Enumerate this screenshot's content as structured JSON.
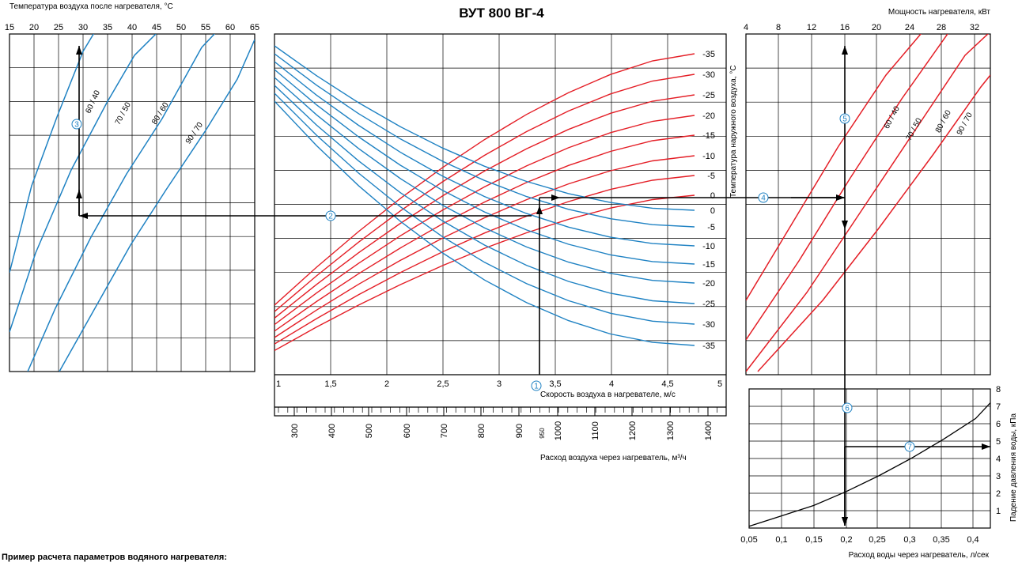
{
  "title": "ВУТ 800 ВГ-4",
  "footnote": "Пример расчета параметров водяного нагревателя:",
  "colors": {
    "blue": "#1f82c3",
    "red": "#e41e26",
    "black": "#000000"
  },
  "chart_data": [
    {
      "id": "heating-temperature",
      "type": "line",
      "xlabel": "Температура воздуха после нагревателя, °C",
      "x_ticks": [
        15,
        20,
        25,
        30,
        35,
        40,
        45,
        50,
        55,
        60,
        65
      ],
      "xlim": [
        15,
        65
      ],
      "series": [
        {
          "name": "60 / 40",
          "points": [
            [
              15,
              -11.7
            ],
            [
              21,
              -41
            ],
            [
              26,
              -62
            ],
            [
              30,
              -78
            ]
          ]
        },
        {
          "name": "70 / 50",
          "points": [
            [
              16,
              -38
            ],
            [
              25,
              -3
            ],
            [
              32,
              22
            ],
            [
              40,
              45
            ],
            [
              44,
              57
            ]
          ]
        },
        {
          "name": "80 / 60",
          "points": [
            [
              20,
              -47
            ],
            [
              30,
              -13
            ],
            [
              40,
              12
            ],
            [
              50,
              40
            ],
            [
              55,
              55
            ]
          ]
        },
        {
          "name": "90 / 70",
          "points": [
            [
              24,
              -60
            ],
            [
              35,
              -27
            ],
            [
              45,
              0
            ],
            [
              55,
              22
            ],
            [
              65,
              47
            ]
          ]
        }
      ],
      "example_value": 29.5
    },
    {
      "id": "air-velocity",
      "type": "line",
      "xlabel": "Скорость воздуха в нагревателе, м/с",
      "x2label": "Расход воздуха через нагреватель, м³/ч",
      "ylabel": "Температура наружного воздуха, °C",
      "x_ticks": [
        "1",
        "1,5",
        "2",
        "2,5",
        "3",
        "3,5",
        "4",
        "4,5",
        "5"
      ],
      "xlim": [
        1,
        5
      ],
      "flow_ticks": [
        "300",
        "400",
        "500",
        "600",
        "700",
        "800",
        "900",
        "1000",
        "1100",
        "1200",
        "1300",
        "1400"
      ],
      "flow_example": "950",
      "red_labels": [
        "-35",
        "-30",
        "-25",
        "-20",
        "-15",
        "-10",
        "-5",
        "0"
      ],
      "blue_labels": [
        "0",
        "-5",
        "-10",
        "-15",
        "-20",
        "-25",
        "-30",
        "-35"
      ],
      "red_series": [
        {
          "t": -35,
          "points": [
            [
              1,
              -35.5
            ],
            [
              1.5,
              -42
            ],
            [
              2,
              -46.5
            ],
            [
              3,
              -54
            ],
            [
              4,
              -59
            ],
            [
              5,
              -63
            ]
          ]
        },
        {
          "t": -30,
          "points": [
            [
              1,
              -40
            ],
            [
              1.5,
              -46
            ],
            [
              2,
              -51
            ],
            [
              3,
              -58
            ],
            [
              4,
              -63
            ],
            [
              5,
              -67
            ]
          ]
        },
        {
          "t": -25,
          "points": [
            [
              1,
              -44
            ],
            [
              1.5,
              -50
            ],
            [
              2,
              -55
            ],
            [
              3,
              -62
            ],
            [
              4,
              -67
            ],
            [
              5,
              -71
            ]
          ]
        },
        {
          "t": -20,
          "points": [
            [
              1,
              -48
            ],
            [
              1.5,
              -54
            ],
            [
              2,
              -59
            ],
            [
              3,
              -66
            ],
            [
              4,
              -71
            ],
            [
              5,
              -75
            ]
          ]
        },
        {
          "t": -15,
          "points": [
            [
              1,
              -52
            ],
            [
              1.5,
              -58
            ],
            [
              2,
              -63
            ],
            [
              3,
              -70
            ],
            [
              4,
              -75
            ],
            [
              5,
              -79
            ]
          ]
        },
        {
          "t": -10,
          "points": [
            [
              1,
              -56
            ],
            [
              1.5,
              -62
            ],
            [
              2,
              -67
            ],
            [
              3,
              -74
            ],
            [
              4,
              -79
            ],
            [
              5,
              -83
            ]
          ]
        },
        {
          "t": -5,
          "points": [
            [
              1,
              -60
            ],
            [
              1.5,
              -66
            ],
            [
              2,
              -71
            ],
            [
              3,
              -78
            ],
            [
              4,
              -83
            ],
            [
              5,
              -87
            ]
          ]
        },
        {
          "t": 0,
          "points": [
            [
              1,
              -64
            ],
            [
              1.5,
              -70
            ],
            [
              2,
              -75
            ],
            [
              3,
              -82
            ],
            [
              4,
              -87
            ],
            [
              5,
              -91
            ]
          ]
        }
      ],
      "blue_series": [
        {
          "t": 0,
          "points": [
            [
              1,
              50
            ],
            [
              1.5,
              37
            ],
            [
              2,
              27
            ],
            [
              3,
              14
            ],
            [
              4,
              6
            ],
            [
              5,
              1
            ]
          ]
        },
        {
          "t": -5,
          "points": [
            [
              1,
              46
            ],
            [
              1.5,
              33
            ],
            [
              2,
              23
            ],
            [
              3,
              10
            ],
            [
              4,
              2
            ],
            [
              5,
              -3
            ]
          ]
        },
        {
          "t": -10,
          "points": [
            [
              1,
              42
            ],
            [
              1.5,
              29
            ],
            [
              2,
              19
            ],
            [
              3,
              6
            ],
            [
              4,
              -2
            ],
            [
              5,
              -7
            ]
          ]
        },
        {
          "t": -15,
          "points": [
            [
              1,
              38
            ],
            [
              1.5,
              25
            ],
            [
              2,
              15
            ],
            [
              3,
              2
            ],
            [
              4,
              -6
            ],
            [
              5,
              -11
            ]
          ]
        },
        {
          "t": -20,
          "points": [
            [
              1,
              34
            ],
            [
              1.5,
              21
            ],
            [
              2,
              11
            ],
            [
              3,
              -2
            ],
            [
              4,
              -10
            ],
            [
              5,
              -15
            ]
          ]
        },
        {
          "t": -25,
          "points": [
            [
              1,
              30
            ],
            [
              1.5,
              17
            ],
            [
              2,
              7
            ],
            [
              3,
              -6
            ],
            [
              4,
              -14
            ],
            [
              5,
              -19
            ]
          ]
        },
        {
          "t": -30,
          "points": [
            [
              1,
              26
            ],
            [
              1.5,
              13
            ],
            [
              2,
              3
            ],
            [
              3,
              -10
            ],
            [
              4,
              -18
            ],
            [
              5,
              -23
            ]
          ]
        },
        {
          "t": -35,
          "points": [
            [
              1,
              22
            ],
            [
              1.5,
              9
            ],
            [
              2,
              -1
            ],
            [
              3,
              -14
            ],
            [
              4,
              -22
            ],
            [
              5,
              -27
            ]
          ]
        }
      ],
      "example_velocity": 3.35
    },
    {
      "id": "heater-power",
      "type": "line",
      "xlabel": "Мощность нагревателя, кВт",
      "x_ticks": [
        "4",
        "8",
        "12",
        "16",
        "20",
        "24",
        "28",
        "32"
      ],
      "xlim": [
        4,
        34
      ],
      "series": [
        {
          "name": "60 / 40",
          "points": [
            [
              4,
              -50
            ],
            [
              10,
              -28
            ],
            [
              20,
              10
            ],
            [
              26,
              35
            ]
          ]
        },
        {
          "name": "70 / 50",
          "points": [
            [
              4,
              -62
            ],
            [
              12,
              -28
            ],
            [
              22,
              8
            ],
            [
              30,
              38
            ]
          ]
        },
        {
          "name": "80 / 60",
          "points": [
            [
              4,
              -74
            ],
            [
              14,
              -30
            ],
            [
              24,
              6
            ],
            [
              34,
              44
            ]
          ]
        },
        {
          "name": "90 / 70",
          "points": [
            [
              5,
              -80
            ],
            [
              16,
              -35
            ],
            [
              26,
              2
            ],
            [
              34,
              34
            ]
          ]
        }
      ],
      "example_value": 16
    },
    {
      "id": "water-pressure-drop",
      "type": "line",
      "xlabel": "Расход воды через нагреватель, л/сек",
      "ylabel": "Падение давления воды, кПа",
      "x_ticks": [
        "0,05",
        "0,1",
        "0,15",
        "0,2",
        "0,25",
        "0,3",
        "0,35",
        "0,4"
      ],
      "y_ticks": [
        "1",
        "2",
        "3",
        "4",
        "5",
        "6",
        "7",
        "8"
      ],
      "xlim": [
        0.05,
        0.43
      ],
      "ylim": [
        0,
        8
      ],
      "curve": [
        [
          0.05,
          0.1
        ],
        [
          0.1,
          0.7
        ],
        [
          0.15,
          1.3
        ],
        [
          0.2,
          2.1
        ],
        [
          0.25,
          3.0
        ],
        [
          0.3,
          4.0
        ],
        [
          0.35,
          5.1
        ],
        [
          0.4,
          6.3
        ],
        [
          0.43,
          7.2
        ]
      ],
      "example": {
        "flow": 0.2,
        "pressure_drop": 2.1
      }
    }
  ],
  "markers": [
    "1",
    "2",
    "3",
    "4",
    "5",
    "6",
    "7"
  ]
}
